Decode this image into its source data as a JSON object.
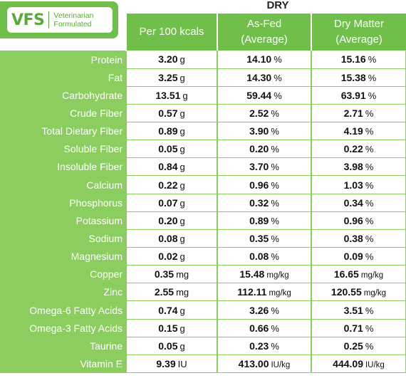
{
  "logo": {
    "mark": "VFS",
    "line1": "Veterinarian",
    "line2": "Formulated"
  },
  "title": "DRY",
  "headers": {
    "per_kcal": "Per 100 kcals",
    "as_fed_1": "As-Fed",
    "as_fed_2": "(Average)",
    "dry_matter_1": "Dry Matter",
    "dry_matter_2": "(Average)"
  },
  "rows": [
    {
      "label": "Protein",
      "kcal": "3.20",
      "kcal_unit": "g",
      "fed": "14.10",
      "fed_unit": "%",
      "dm": "15.16",
      "dm_unit": "%"
    },
    {
      "label": "Fat",
      "kcal": "3.25",
      "kcal_unit": "g",
      "fed": "14.30",
      "fed_unit": "%",
      "dm": "15.38",
      "dm_unit": "%"
    },
    {
      "label": "Carbohydrate",
      "kcal": "13.51",
      "kcal_unit": "g",
      "fed": "59.44",
      "fed_unit": "%",
      "dm": "63.91",
      "dm_unit": "%"
    },
    {
      "label": "Crude Fiber",
      "kcal": "0.57",
      "kcal_unit": "g",
      "fed": "2.52",
      "fed_unit": "%",
      "dm": "2.71",
      "dm_unit": "%"
    },
    {
      "label": "Total Dietary Fiber",
      "kcal": "0.89",
      "kcal_unit": "g",
      "fed": "3.90",
      "fed_unit": "%",
      "dm": "4.19",
      "dm_unit": "%"
    },
    {
      "label": "Soluble Fiber",
      "kcal": "0.05",
      "kcal_unit": "g",
      "fed": "0.20",
      "fed_unit": "%",
      "dm": "0.22",
      "dm_unit": "%"
    },
    {
      "label": "Insoluble Fiber",
      "kcal": "0.84",
      "kcal_unit": "g",
      "fed": "3.70",
      "fed_unit": "%",
      "dm": "3.98",
      "dm_unit": "%"
    },
    {
      "label": "Calcium",
      "kcal": "0.22",
      "kcal_unit": "g",
      "fed": "0.96",
      "fed_unit": "%",
      "dm": "1.03",
      "dm_unit": "%"
    },
    {
      "label": "Phosphorus",
      "kcal": "0.07",
      "kcal_unit": "g",
      "fed": "0.32",
      "fed_unit": "%",
      "dm": "0.34",
      "dm_unit": "%"
    },
    {
      "label": "Potassium",
      "kcal": "0.20",
      "kcal_unit": "g",
      "fed": "0.89",
      "fed_unit": "%",
      "dm": "0.96",
      "dm_unit": "%"
    },
    {
      "label": "Sodium",
      "kcal": "0.08",
      "kcal_unit": "g",
      "fed": "0.35",
      "fed_unit": "%",
      "dm": "0.38",
      "dm_unit": "%"
    },
    {
      "label": "Magnesium",
      "kcal": "0.02",
      "kcal_unit": "g",
      "fed": "0.08",
      "fed_unit": "%",
      "dm": "0.09",
      "dm_unit": "%"
    },
    {
      "label": "Copper",
      "kcal": "0.35",
      "kcal_unit": "mg",
      "fed": "15.48",
      "fed_unit": "mg/kg",
      "dm": "16.65",
      "dm_unit": "mg/kg"
    },
    {
      "label": "Zinc",
      "kcal": "2.55",
      "kcal_unit": "mg",
      "fed": "112.11",
      "fed_unit": "mg/kg",
      "dm": "120.55",
      "dm_unit": "mg/kg"
    },
    {
      "label": "Omega-6 Fatty Acids",
      "kcal": "0.74",
      "kcal_unit": "g",
      "fed": "3.26",
      "fed_unit": "%",
      "dm": "3.51",
      "dm_unit": "%"
    },
    {
      "label": "Omega-3 Fatty Acids",
      "kcal": "0.15",
      "kcal_unit": "g",
      "fed": "0.66",
      "fed_unit": "%",
      "dm": "0.71",
      "dm_unit": "%"
    },
    {
      "label": "Taurine",
      "kcal": "0.05",
      "kcal_unit": "g",
      "fed": "0.23",
      "fed_unit": "%",
      "dm": "0.25",
      "dm_unit": "%"
    },
    {
      "label": "Vitamin E",
      "kcal": "9.39",
      "kcal_unit": "IU",
      "fed": "413.00",
      "fed_unit": "IU/kg",
      "dm": "444.09",
      "dm_unit": "IU/kg"
    }
  ],
  "colors": {
    "header_green": "#6fbf4a",
    "label_green": "#8ccd5f"
  }
}
